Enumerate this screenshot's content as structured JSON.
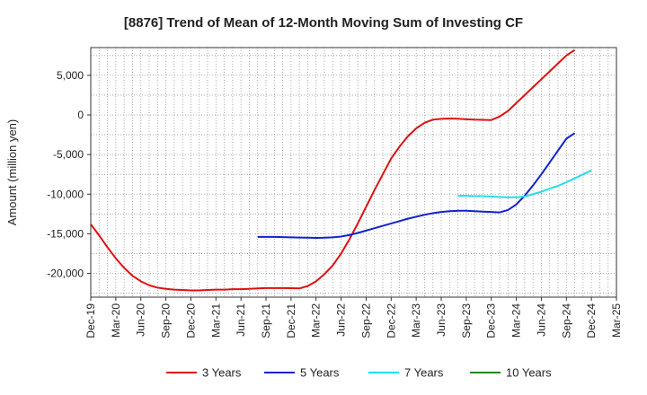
{
  "chart_data": {
    "type": "line",
    "title": "[8876]  Trend of Mean of 12-Month Moving Sum of Investing CF",
    "xlabel": "",
    "ylabel": "Amount (million yen)",
    "ylim": [
      -23000,
      8500
    ],
    "yticks": [
      5000,
      0,
      -5000,
      -10000,
      -15000,
      -20000
    ],
    "ytick_labels": [
      "5,000",
      "0",
      "-5,000",
      "-10,000",
      "-15,000",
      "-20,000"
    ],
    "xtick_labels": [
      "Dec-19",
      "Mar-20",
      "Jun-20",
      "Sep-20",
      "Dec-20",
      "Mar-21",
      "Jun-21",
      "Sep-21",
      "Dec-21",
      "Mar-22",
      "Jun-22",
      "Sep-22",
      "Dec-22",
      "Mar-23",
      "Jun-23",
      "Sep-23",
      "Dec-23",
      "Mar-24",
      "Jun-24",
      "Sep-24",
      "Dec-24",
      "Mar-25"
    ],
    "grid": true,
    "legend_position": "bottom",
    "series": [
      {
        "name": "3 Years",
        "color": "#dd1111",
        "start_index": 0,
        "values": [
          -13800,
          -15200,
          -16700,
          -18100,
          -19300,
          -20300,
          -21000,
          -21500,
          -21800,
          -21950,
          -22050,
          -22100,
          -22150,
          -22150,
          -22100,
          -22050,
          -22050,
          -22000,
          -22000,
          -21950,
          -21900,
          -21850,
          -21850,
          -21850,
          -21870,
          -21900,
          -21600,
          -21000,
          -20100,
          -19000,
          -17500,
          -15700,
          -13700,
          -11600,
          -9500,
          -7500,
          -5500,
          -4000,
          -2700,
          -1700,
          -1000,
          -600,
          -500,
          -450,
          -480,
          -550,
          -600,
          -620,
          -650,
          -200,
          500,
          1500,
          2500,
          3500,
          4500,
          5500,
          6500,
          7500,
          8200
        ]
      },
      {
        "name": "5 Years",
        "color": "#1122cc",
        "start_index": 20,
        "values": [
          -15400,
          -15400,
          -15400,
          -15420,
          -15450,
          -15480,
          -15500,
          -15520,
          -15500,
          -15450,
          -15350,
          -15150,
          -14900,
          -14600,
          -14300,
          -14000,
          -13700,
          -13400,
          -13100,
          -12850,
          -12600,
          -12400,
          -12250,
          -12150,
          -12100,
          -12100,
          -12150,
          -12200,
          -12250,
          -12300,
          -12000,
          -11300,
          -10200,
          -8900,
          -7500,
          -6000,
          -4500,
          -3000,
          -2300
        ]
      },
      {
        "name": "7 Years",
        "color": "#22ddee",
        "start_index": 44,
        "values": [
          -10200,
          -10200,
          -10250,
          -10250,
          -10300,
          -10350,
          -10400,
          -10400,
          -10300,
          -10000,
          -9700,
          -9300,
          -8950,
          -8500,
          -8000,
          -7500,
          -7000
        ]
      },
      {
        "name": "10 Years",
        "color": "#228822",
        "start_index": 0,
        "values": []
      }
    ]
  }
}
